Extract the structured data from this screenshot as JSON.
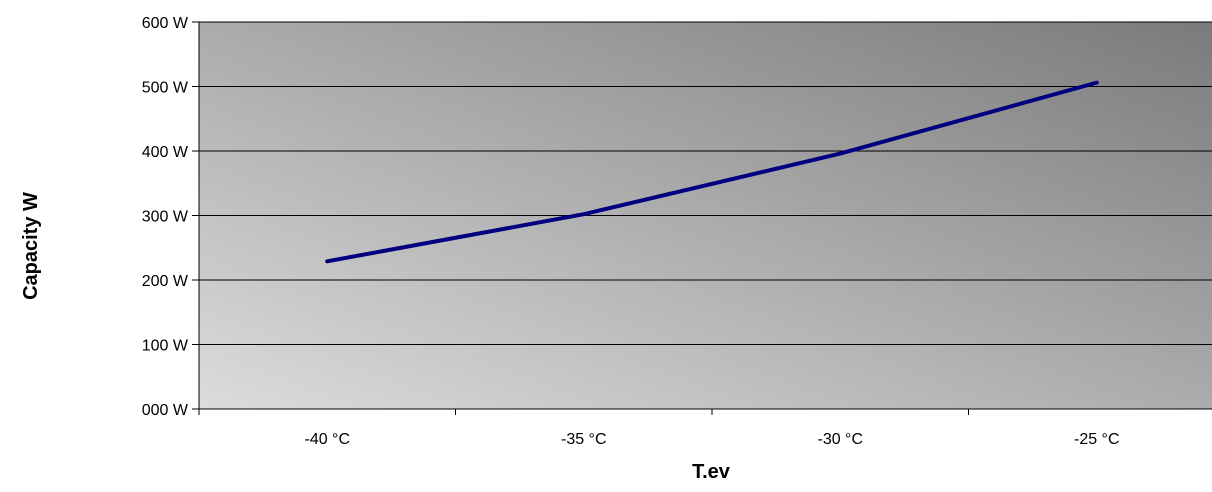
{
  "chart_data": {
    "type": "line",
    "title": "",
    "xlabel": "T.ev",
    "ylabel": "Capacity W",
    "categories": [
      "-40 °C",
      "-35 °C",
      "-30 °C",
      "-25 °C"
    ],
    "y_tick_labels": [
      "000 W",
      "100 W",
      "200 W",
      "300 W",
      "400 W",
      "500 W",
      "600 W"
    ],
    "ylim": [
      0,
      600
    ],
    "y_step": 100,
    "grid": true,
    "legend": "none",
    "series": [
      {
        "values": [
          229,
          302,
          396,
          506
        ],
        "color": "#000080"
      }
    ],
    "plot_background": {
      "gradient_from": "#dcdcdc",
      "gradient_to": "#7a7a7a"
    }
  }
}
